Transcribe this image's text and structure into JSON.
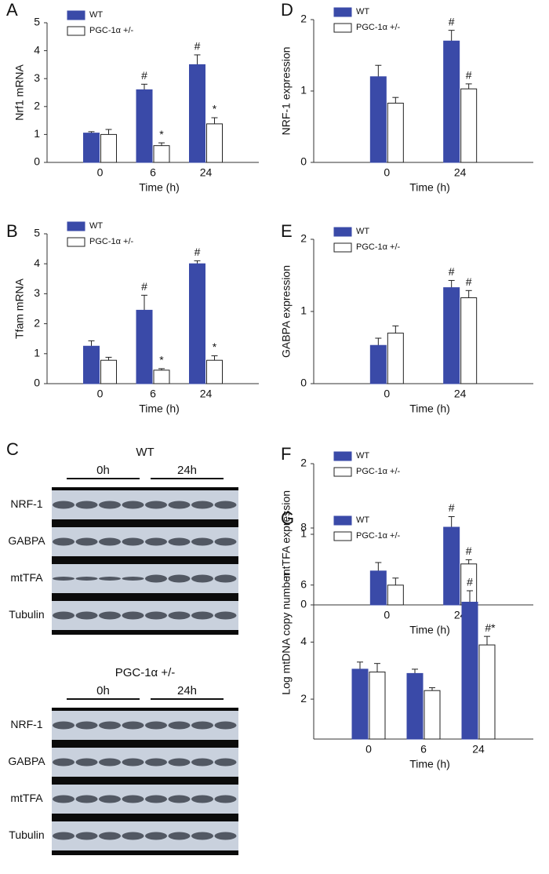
{
  "chart_data": [
    {
      "panel": "A",
      "type": "bar",
      "ylabel": "Nrf1 mRNA",
      "xlabel": "Time (h)",
      "categories": [
        "0",
        "6",
        "24"
      ],
      "ylim": [
        0,
        5
      ],
      "yticks": [
        0,
        1,
        2,
        3,
        4,
        5
      ],
      "series": [
        {
          "name": "WT",
          "color": "#3a4aa8",
          "values": [
            1.05,
            2.6,
            3.5
          ],
          "errors": [
            0.05,
            0.2,
            0.35
          ],
          "annotations": [
            null,
            "#",
            "#"
          ]
        },
        {
          "name": "PGC-1α +/-",
          "color": "#ffffff",
          "values": [
            1.0,
            0.6,
            1.38
          ],
          "errors": [
            0.18,
            0.1,
            0.22
          ],
          "annotations": [
            null,
            "*",
            "*"
          ]
        }
      ]
    },
    {
      "panel": "B",
      "type": "bar",
      "ylabel": "Tfam mRNA",
      "xlabel": "Time (h)",
      "categories": [
        "0",
        "6",
        "24"
      ],
      "ylim": [
        0,
        5
      ],
      "yticks": [
        0,
        1,
        2,
        3,
        4,
        5
      ],
      "series": [
        {
          "name": "WT",
          "color": "#3a4aa8",
          "values": [
            1.25,
            2.45,
            4.0
          ],
          "errors": [
            0.18,
            0.5,
            0.1
          ],
          "annotations": [
            null,
            "#",
            "#"
          ]
        },
        {
          "name": "PGC-1α +/-",
          "color": "#ffffff",
          "values": [
            0.78,
            0.45,
            0.78
          ],
          "errors": [
            0.1,
            0.05,
            0.15
          ],
          "annotations": [
            null,
            "*",
            "*"
          ]
        }
      ]
    },
    {
      "panel": "D",
      "type": "bar",
      "ylabel": "NRF-1 expression",
      "xlabel": "Time (h)",
      "categories": [
        "0",
        "24"
      ],
      "ylim": [
        0,
        2
      ],
      "yticks": [
        0,
        1,
        2
      ],
      "series": [
        {
          "name": "WT",
          "color": "#3a4aa8",
          "values": [
            1.2,
            1.7
          ],
          "errors": [
            0.16,
            0.15
          ],
          "annotations": [
            null,
            "#"
          ]
        },
        {
          "name": "PGC-1α +/-",
          "color": "#ffffff",
          "values": [
            0.83,
            1.03
          ],
          "errors": [
            0.08,
            0.07
          ],
          "annotations": [
            null,
            "#"
          ]
        }
      ]
    },
    {
      "panel": "E",
      "type": "bar",
      "ylabel": "GABPA expression",
      "xlabel": "Time (h)",
      "categories": [
        "0",
        "24"
      ],
      "ylim": [
        0,
        2
      ],
      "yticks": [
        0,
        1,
        2
      ],
      "series": [
        {
          "name": "WT",
          "color": "#3a4aa8",
          "values": [
            0.53,
            1.33
          ],
          "errors": [
            0.1,
            0.1
          ],
          "annotations": [
            null,
            "#"
          ]
        },
        {
          "name": "PGC-1α +/-",
          "color": "#ffffff",
          "values": [
            0.7,
            1.19
          ],
          "errors": [
            0.1,
            0.1
          ],
          "annotations": [
            null,
            "#"
          ]
        }
      ]
    },
    {
      "panel": "F",
      "type": "bar",
      "ylabel": "mtTFA expression",
      "xlabel": "Time (h)",
      "categories": [
        "0",
        "24"
      ],
      "ylim": [
        0,
        2
      ],
      "yticks": [
        0,
        1,
        2
      ],
      "series": [
        {
          "name": "WT",
          "color": "#3a4aa8",
          "values": [
            0.48,
            1.1
          ],
          "errors": [
            0.12,
            0.15
          ],
          "annotations": [
            null,
            "#"
          ]
        },
        {
          "name": "PGC-1α +/-",
          "color": "#ffffff",
          "values": [
            0.28,
            0.58
          ],
          "errors": [
            0.1,
            0.06
          ],
          "annotations": [
            null,
            "#"
          ]
        }
      ]
    },
    {
      "panel": "G",
      "type": "bar",
      "ylabel": "Log mtDNA copy number",
      "xlabel": "Time (h)",
      "categories": [
        "0",
        "6",
        "24"
      ],
      "ylim": [
        0.6,
        8
      ],
      "yticks": [
        2,
        4,
        6,
        8
      ],
      "series": [
        {
          "name": "WT",
          "color": "#3a4aa8",
          "values": [
            3.05,
            2.9,
            5.4
          ],
          "errors": [
            0.25,
            0.15,
            0.4
          ],
          "annotations": [
            null,
            null,
            "#"
          ]
        },
        {
          "name": "PGC-1α +/-",
          "color": "#ffffff",
          "values": [
            2.95,
            2.3,
            3.9
          ],
          "errors": [
            0.3,
            0.1,
            0.3
          ],
          "annotations": [
            null,
            null,
            "#*"
          ]
        }
      ]
    }
  ],
  "blots": {
    "panel": "C",
    "groups": [
      {
        "title": "WT",
        "times": [
          "0h",
          "24h"
        ],
        "rows": [
          "NRF-1",
          "GABPA",
          "mtTFA",
          "Tubulin"
        ]
      },
      {
        "title": "PGC-1α +/-",
        "times": [
          "0h",
          "24h"
        ],
        "rows": [
          "NRF-1",
          "GABPA",
          "mtTFA",
          "Tubulin"
        ]
      }
    ]
  }
}
